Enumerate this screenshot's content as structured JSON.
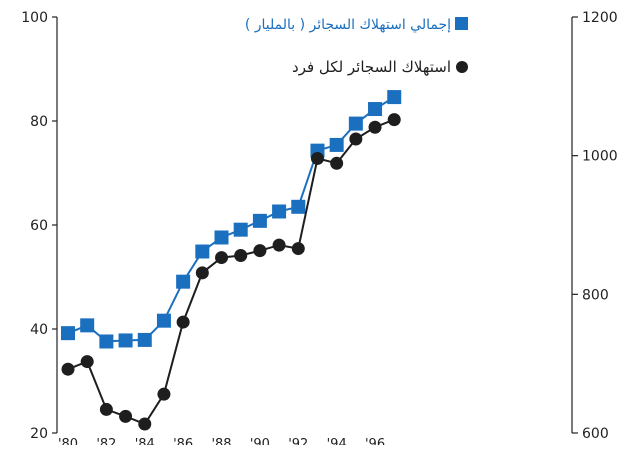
{
  "chart_data": {
    "type": "line",
    "x_tick_labels": [
      "'80",
      "'82",
      "'84",
      "'86",
      "'88",
      "'90",
      "'92",
      "'94",
      "'96"
    ],
    "left_axis": {
      "ylim": [
        20,
        100
      ],
      "ticks": [
        20,
        40,
        60,
        80,
        100
      ]
    },
    "right_axis": {
      "ylim": [
        600,
        1200
      ],
      "ticks": [
        600,
        800,
        1000,
        1200
      ]
    },
    "legend_position": "top-right",
    "series": [
      {
        "name": "إجمالي استهلاك السجائر ( بالمليار )",
        "axis": "left",
        "color": "#1a6fbf",
        "marker": "square",
        "x": [
          1980,
          1981,
          1982,
          1983,
          1984,
          1985,
          1986,
          1987,
          1988,
          1989,
          1990,
          1991,
          1992,
          1993,
          1994,
          1995,
          1996,
          1997
        ],
        "values": [
          39.2,
          40.7,
          37.6,
          37.8,
          37.9,
          41.6,
          49.1,
          54.9,
          57.6,
          59.1,
          60.8,
          62.6,
          63.5,
          74.3,
          75.4,
          79.5,
          82.3,
          84.6
        ]
      },
      {
        "name": "استهلاك السجائر لكل فرد",
        "axis": "right",
        "color": "#1e1e1e",
        "marker": "circle",
        "x": [
          1980,
          1981,
          1982,
          1983,
          1984,
          1985,
          1986,
          1987,
          1988,
          1989,
          1990,
          1991,
          1992,
          1993,
          1994,
          1995,
          1996,
          1997
        ],
        "values": [
          692,
          703,
          634,
          624,
          613,
          656,
          760,
          831,
          853,
          856,
          863,
          871,
          866,
          996,
          989,
          1024,
          1041,
          1052
        ]
      }
    ]
  }
}
